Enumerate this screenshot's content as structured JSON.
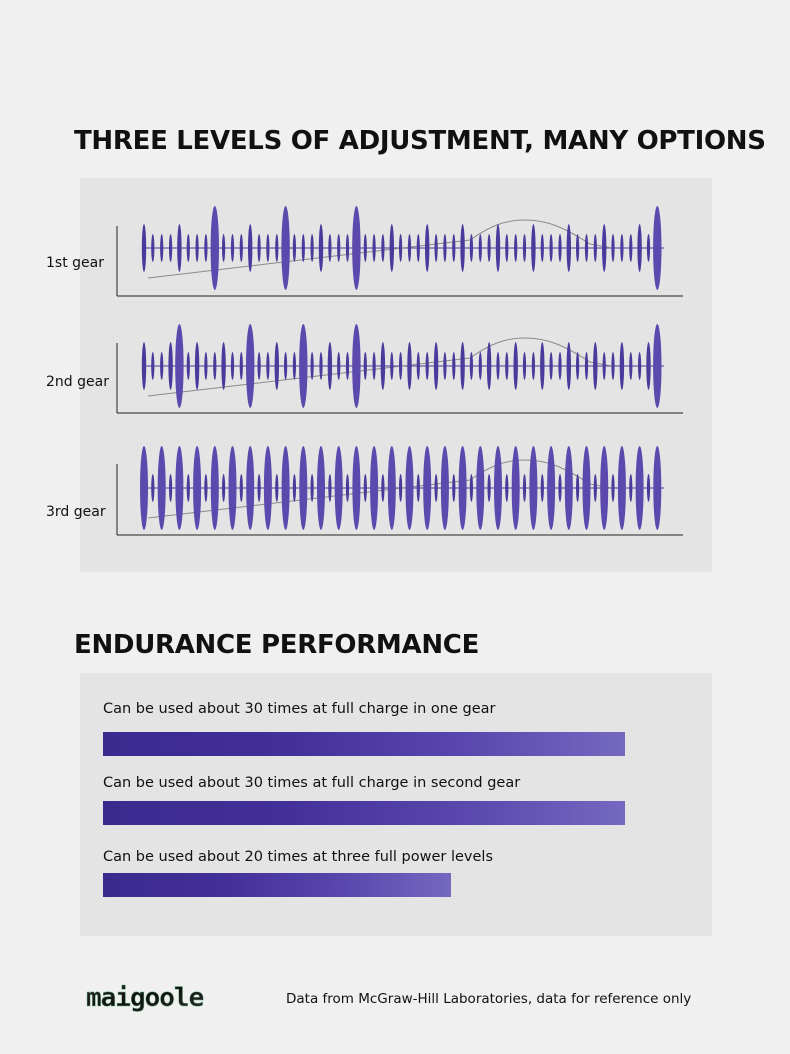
{
  "sections": {
    "adjustment_title": "THREE LEVELS OF ADJUSTMENT, MANY OPTIONS",
    "endurance_title": "ENDURANCE PERFORMANCE"
  },
  "gears": [
    {
      "label": "1st gear",
      "big_every": 4,
      "large_pulses": [
        8,
        16,
        24
      ]
    },
    {
      "label": "2nd gear",
      "big_every": 3,
      "large_pulses": [
        4,
        12,
        18,
        24
      ]
    },
    {
      "label": "3rd gear",
      "big_every": 2,
      "large_pulses": []
    }
  ],
  "endurance": [
    {
      "label": "Can be used about 30 times at full charge in one gear",
      "level": 0.9
    },
    {
      "label": "Can be used about 30 times at full charge in second gear",
      "level": 0.9
    },
    {
      "label": "Can be used about 20 times at three full power levels",
      "level": 0.6
    }
  ],
  "colors": {
    "pulse": "#4b3a9c",
    "pulse_big": "#5b49ad",
    "curve": "#8a8a8a",
    "bar_start": "#3a2a8e",
    "bar_end": "#7468c0"
  },
  "footer": {
    "logo_text": "maigoole",
    "note": "Data from McGraw-Hill Laboratories, data for reference only"
  }
}
